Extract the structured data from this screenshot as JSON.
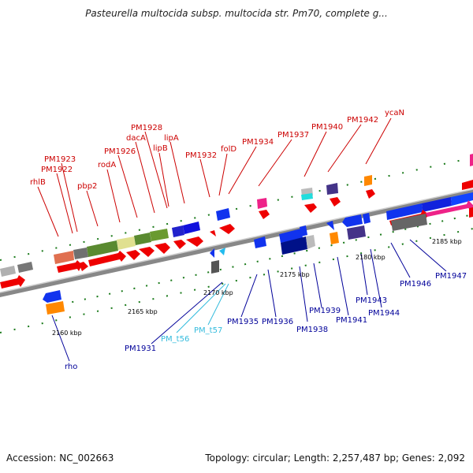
{
  "header": {
    "title": "Pasteurella multocida subsp. multocida str. Pm70, complete g..."
  },
  "footer": {
    "accession": "Accession: NC_002663",
    "topology": "Topology: circular; Length: 2,257,487 bp; Genes: 2,092"
  },
  "colors": {
    "red_label": "#cc0000",
    "blue_label": "#000099",
    "cyan_label": "#33bbdd",
    "backbone": "#888888",
    "tick": "#1a7a1a"
  },
  "kbp_labels": [
    "2160 kbp",
    "2165 kbp",
    "2170 kbp",
    "2175 kbp",
    "2180 kbp",
    "2185 kbp"
  ],
  "genes_top": [
    "rhlB",
    "PM1922",
    "PM1923",
    "pbp2",
    "rodA",
    "PM1926",
    "dacA",
    "PM1928",
    "lipB",
    "lipA",
    "PM1932",
    "folD",
    "PM1934",
    "PM1937",
    "PM1940",
    "PM1942",
    "ycaN"
  ],
  "genes_bottom": [
    "rho",
    "PM1931",
    "PM_t56",
    "PM_t57",
    "PM1935",
    "PM1936",
    "PM1938",
    "PM1939",
    "PM1941",
    "PM1943",
    "PM1944",
    "PM1946",
    "PM1947"
  ]
}
